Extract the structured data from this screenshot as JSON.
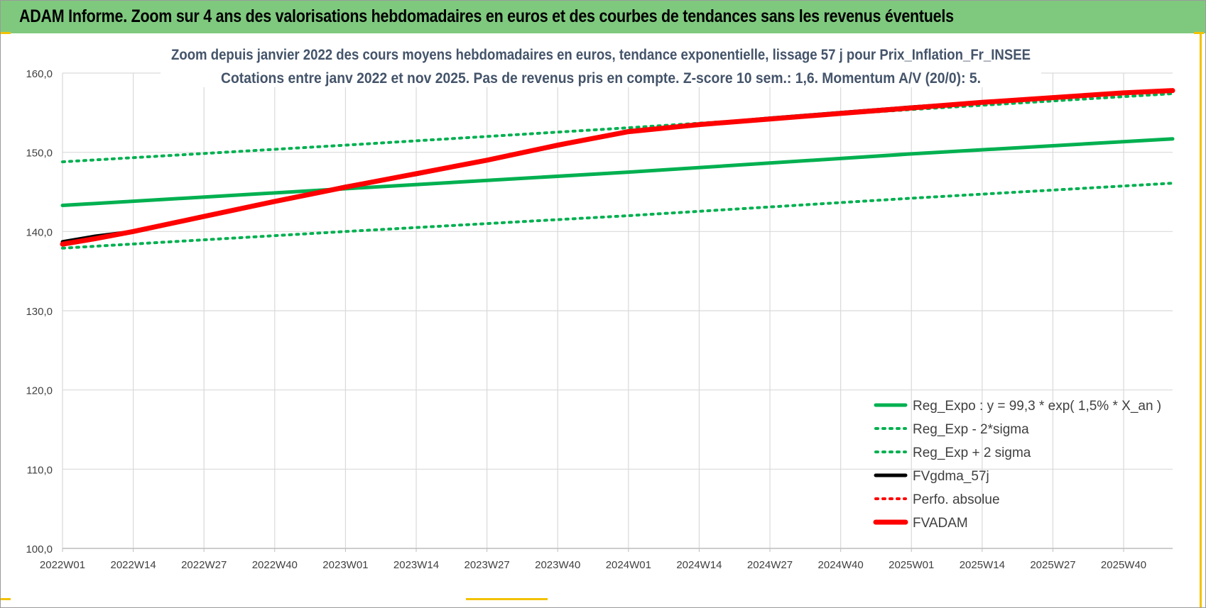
{
  "banner": {
    "title": "ADAM Informe. Zoom sur 4 ans des valorisations hebdomadaires en euros et des courbes de tendances sans les revenus éventuels"
  },
  "colors": {
    "banner_bg": "#7fc97f",
    "regression": "#00b050",
    "fvgdma": "#000000",
    "perfo": "#ff0000",
    "fvadam": "#ff0000",
    "grid": "#d9d9d9",
    "axis_text": "#404040",
    "title_text": "#44546a",
    "corner_accent": "#f2c200"
  },
  "chart_data": {
    "type": "line",
    "title_line1": "Zoom depuis janvier 2022 des cours moyens hebdomadaires en euros, tendance exponentielle, lissage 57 j pour Prix_Inflation_Fr_INSEE",
    "title_line2": "Cotations entre janv 2022 et nov 2025. Pas de revenus pris en compte. Z-score 10 sem.: 1,6. Momentum A/V (20/0): 5.",
    "xlabel": "",
    "ylabel": "",
    "x_ticks": [
      "2022W01",
      "2022W14",
      "2022W27",
      "2022W40",
      "2023W01",
      "2023W14",
      "2023W27",
      "2023W40",
      "2024W01",
      "2024W14",
      "2024W27",
      "2024W40",
      "2025W01",
      "2025W14",
      "2025W27",
      "2025W40"
    ],
    "x_range_weeks": [
      0,
      204
    ],
    "ylim": [
      100,
      160
    ],
    "y_ticks": [
      "100,0",
      "110,0",
      "120,0",
      "130,0",
      "140,0",
      "150,0",
      "160,0"
    ],
    "grid": true,
    "legend_position": "bottom-right",
    "series": [
      {
        "name": "Reg_Expo : y = 99,3 * exp( 1,5% *  X_an )",
        "style": "solid",
        "color": "#00b050",
        "x_week": [
          0,
          52,
          104,
          156,
          204
        ],
        "values": [
          143.3,
          145.4,
          147.5,
          149.8,
          151.7
        ]
      },
      {
        "name": "Reg_Exp - 2*sigma",
        "style": "dotted",
        "color": "#00b050",
        "x_week": [
          0,
          52,
          104,
          156,
          204
        ],
        "values": [
          137.9,
          140.0,
          142.0,
          144.2,
          146.1
        ]
      },
      {
        "name": "Reg_Exp + 2 sigma",
        "style": "dotted",
        "color": "#00b050",
        "x_week": [
          0,
          52,
          104,
          156,
          204
        ],
        "values": [
          148.8,
          150.9,
          153.1,
          155.4,
          157.4
        ]
      },
      {
        "name": "FVgdma_57j",
        "style": "solid",
        "color": "#000000",
        "x_week": [
          0,
          6,
          13,
          26,
          39,
          52,
          65,
          78,
          91,
          104,
          117,
          130,
          143,
          156,
          169,
          182,
          195,
          204
        ],
        "values": [
          138.7,
          139.4,
          140.0,
          141.9,
          143.8,
          145.7,
          147.2,
          149.0,
          150.8,
          152.7,
          153.5,
          154.3,
          155.0,
          155.7,
          156.3,
          156.9,
          157.5,
          157.8
        ]
      },
      {
        "name": "Perfo. absolue",
        "style": "dotted",
        "color": "#ff0000",
        "x_week": [
          0,
          13,
          26,
          39,
          52,
          65,
          78,
          91,
          104,
          117,
          130,
          143,
          156,
          169,
          182,
          195,
          204
        ],
        "values": [
          138.4,
          140.0,
          141.9,
          143.8,
          145.6,
          147.3,
          149.0,
          150.9,
          152.6,
          153.5,
          154.2,
          154.9,
          155.6,
          156.3,
          156.9,
          157.5,
          157.8
        ]
      },
      {
        "name": "FVADAM",
        "style": "thick",
        "color": "#ff0000",
        "x_week": [
          0,
          6,
          13,
          26,
          39,
          52,
          65,
          78,
          91,
          104,
          117,
          130,
          143,
          156,
          169,
          182,
          195,
          204
        ],
        "values": [
          138.4,
          139.1,
          140.0,
          141.9,
          143.8,
          145.6,
          147.3,
          149.0,
          150.9,
          152.6,
          153.5,
          154.2,
          154.9,
          155.6,
          156.3,
          156.9,
          157.5,
          157.8
        ]
      }
    ]
  }
}
